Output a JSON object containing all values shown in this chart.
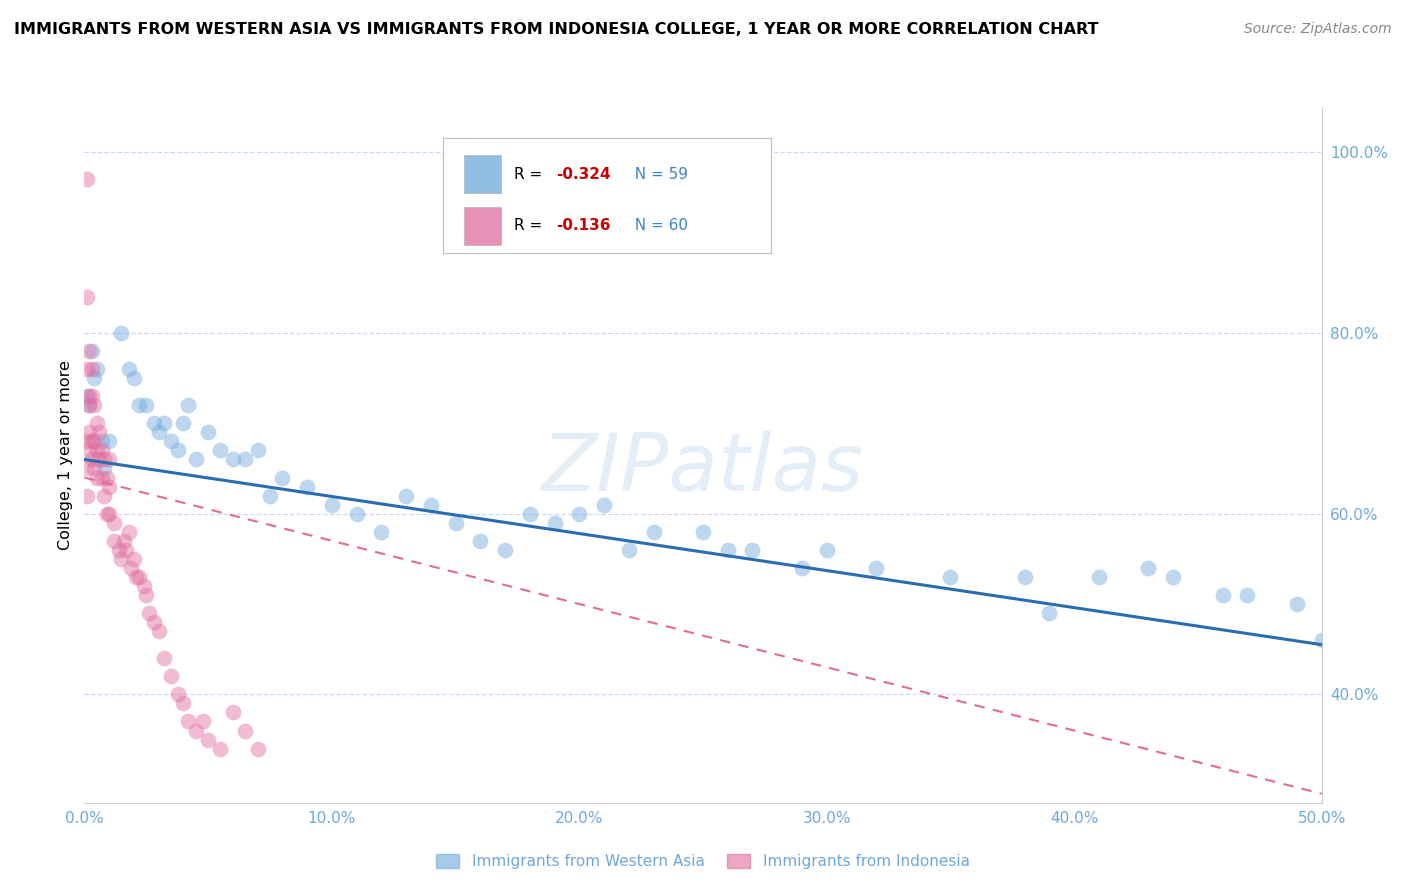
{
  "title": "IMMIGRANTS FROM WESTERN ASIA VS IMMIGRANTS FROM INDONESIA COLLEGE, 1 YEAR OR MORE CORRELATION CHART",
  "source": "Source: ZipAtlas.com",
  "ylabel": "College, 1 year or more",
  "watermark": "ZIPatlas",
  "xlim": [
    0.0,
    0.5
  ],
  "ylim": [
    0.28,
    1.05
  ],
  "xticks": [
    0.0,
    0.1,
    0.2,
    0.3,
    0.4,
    0.5
  ],
  "yticks_right": [
    1.0,
    0.8,
    0.6,
    0.4
  ],
  "series1_label": "Immigrants from Western Asia",
  "series1_R": "-0.324",
  "series1_N": "59",
  "series1_color": "#6fa8dc",
  "series2_label": "Immigrants from Indonesia",
  "series2_R": "-0.136",
  "series2_N": "60",
  "series2_color": "#e06c9f",
  "blue_line_x": [
    0.0,
    0.5
  ],
  "blue_line_y": [
    0.66,
    0.455
  ],
  "pink_line_x": [
    0.0,
    0.5
  ],
  "pink_line_y": [
    0.64,
    0.29
  ],
  "western_asia_x": [
    0.001,
    0.002,
    0.003,
    0.004,
    0.005,
    0.007,
    0.008,
    0.01,
    0.015,
    0.018,
    0.02,
    0.022,
    0.025,
    0.028,
    0.03,
    0.032,
    0.035,
    0.038,
    0.04,
    0.042,
    0.045,
    0.05,
    0.055,
    0.06,
    0.065,
    0.07,
    0.075,
    0.08,
    0.09,
    0.1,
    0.11,
    0.12,
    0.13,
    0.14,
    0.15,
    0.16,
    0.17,
    0.18,
    0.19,
    0.2,
    0.21,
    0.22,
    0.23,
    0.25,
    0.26,
    0.27,
    0.29,
    0.3,
    0.32,
    0.35,
    0.38,
    0.39,
    0.41,
    0.43,
    0.44,
    0.46,
    0.47,
    0.49,
    0.5
  ],
  "western_asia_y": [
    0.73,
    0.72,
    0.78,
    0.75,
    0.76,
    0.68,
    0.65,
    0.68,
    0.8,
    0.76,
    0.75,
    0.72,
    0.72,
    0.7,
    0.69,
    0.7,
    0.68,
    0.67,
    0.7,
    0.72,
    0.66,
    0.69,
    0.67,
    0.66,
    0.66,
    0.67,
    0.62,
    0.64,
    0.63,
    0.61,
    0.6,
    0.58,
    0.62,
    0.61,
    0.59,
    0.57,
    0.56,
    0.6,
    0.59,
    0.6,
    0.61,
    0.56,
    0.58,
    0.58,
    0.56,
    0.56,
    0.54,
    0.56,
    0.54,
    0.53,
    0.53,
    0.49,
    0.53,
    0.54,
    0.53,
    0.51,
    0.51,
    0.5,
    0.46
  ],
  "indonesia_x": [
    0.001,
    0.001,
    0.001,
    0.001,
    0.001,
    0.001,
    0.002,
    0.002,
    0.002,
    0.002,
    0.002,
    0.003,
    0.003,
    0.003,
    0.003,
    0.004,
    0.004,
    0.004,
    0.005,
    0.005,
    0.005,
    0.006,
    0.006,
    0.007,
    0.007,
    0.008,
    0.008,
    0.009,
    0.009,
    0.01,
    0.01,
    0.01,
    0.012,
    0.012,
    0.014,
    0.015,
    0.016,
    0.017,
    0.018,
    0.019,
    0.02,
    0.021,
    0.022,
    0.024,
    0.025,
    0.026,
    0.028,
    0.03,
    0.032,
    0.035,
    0.038,
    0.04,
    0.042,
    0.045,
    0.048,
    0.05,
    0.055,
    0.06,
    0.065,
    0.07
  ],
  "indonesia_y": [
    0.97,
    0.84,
    0.76,
    0.68,
    0.65,
    0.62,
    0.78,
    0.73,
    0.72,
    0.69,
    0.67,
    0.76,
    0.73,
    0.68,
    0.66,
    0.72,
    0.68,
    0.65,
    0.7,
    0.67,
    0.64,
    0.69,
    0.66,
    0.67,
    0.64,
    0.66,
    0.62,
    0.64,
    0.6,
    0.66,
    0.63,
    0.6,
    0.59,
    0.57,
    0.56,
    0.55,
    0.57,
    0.56,
    0.58,
    0.54,
    0.55,
    0.53,
    0.53,
    0.52,
    0.51,
    0.49,
    0.48,
    0.47,
    0.44,
    0.42,
    0.4,
    0.39,
    0.37,
    0.36,
    0.37,
    0.35,
    0.34,
    0.38,
    0.36,
    0.34
  ]
}
